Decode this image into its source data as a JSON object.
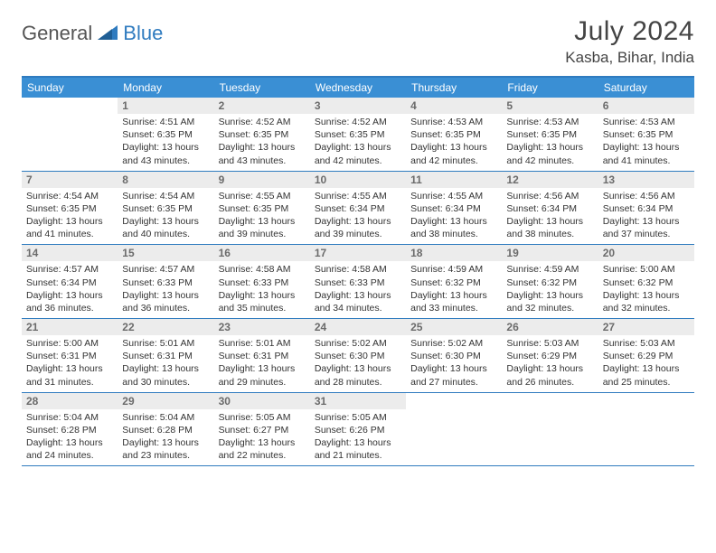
{
  "logo": {
    "general": "General",
    "blue": "Blue",
    "shape_color": "#2f7bbf"
  },
  "header": {
    "title": "July 2024",
    "location": "Kasba, Bihar, India"
  },
  "colors": {
    "header_bar": "#3a8fd4",
    "border": "#2f7bbf",
    "daynum_bg": "#ececec",
    "daynum_fg": "#6b6b6b",
    "text": "#333333",
    "bg": "#ffffff"
  },
  "days_of_week": [
    "Sunday",
    "Monday",
    "Tuesday",
    "Wednesday",
    "Thursday",
    "Friday",
    "Saturday"
  ],
  "weeks": [
    [
      null,
      {
        "n": "1",
        "sr": "Sunrise: 4:51 AM",
        "ss": "Sunset: 6:35 PM",
        "d1": "Daylight: 13 hours",
        "d2": "and 43 minutes."
      },
      {
        "n": "2",
        "sr": "Sunrise: 4:52 AM",
        "ss": "Sunset: 6:35 PM",
        "d1": "Daylight: 13 hours",
        "d2": "and 43 minutes."
      },
      {
        "n": "3",
        "sr": "Sunrise: 4:52 AM",
        "ss": "Sunset: 6:35 PM",
        "d1": "Daylight: 13 hours",
        "d2": "and 42 minutes."
      },
      {
        "n": "4",
        "sr": "Sunrise: 4:53 AM",
        "ss": "Sunset: 6:35 PM",
        "d1": "Daylight: 13 hours",
        "d2": "and 42 minutes."
      },
      {
        "n": "5",
        "sr": "Sunrise: 4:53 AM",
        "ss": "Sunset: 6:35 PM",
        "d1": "Daylight: 13 hours",
        "d2": "and 42 minutes."
      },
      {
        "n": "6",
        "sr": "Sunrise: 4:53 AM",
        "ss": "Sunset: 6:35 PM",
        "d1": "Daylight: 13 hours",
        "d2": "and 41 minutes."
      }
    ],
    [
      {
        "n": "7",
        "sr": "Sunrise: 4:54 AM",
        "ss": "Sunset: 6:35 PM",
        "d1": "Daylight: 13 hours",
        "d2": "and 41 minutes."
      },
      {
        "n": "8",
        "sr": "Sunrise: 4:54 AM",
        "ss": "Sunset: 6:35 PM",
        "d1": "Daylight: 13 hours",
        "d2": "and 40 minutes."
      },
      {
        "n": "9",
        "sr": "Sunrise: 4:55 AM",
        "ss": "Sunset: 6:35 PM",
        "d1": "Daylight: 13 hours",
        "d2": "and 39 minutes."
      },
      {
        "n": "10",
        "sr": "Sunrise: 4:55 AM",
        "ss": "Sunset: 6:34 PM",
        "d1": "Daylight: 13 hours",
        "d2": "and 39 minutes."
      },
      {
        "n": "11",
        "sr": "Sunrise: 4:55 AM",
        "ss": "Sunset: 6:34 PM",
        "d1": "Daylight: 13 hours",
        "d2": "and 38 minutes."
      },
      {
        "n": "12",
        "sr": "Sunrise: 4:56 AM",
        "ss": "Sunset: 6:34 PM",
        "d1": "Daylight: 13 hours",
        "d2": "and 38 minutes."
      },
      {
        "n": "13",
        "sr": "Sunrise: 4:56 AM",
        "ss": "Sunset: 6:34 PM",
        "d1": "Daylight: 13 hours",
        "d2": "and 37 minutes."
      }
    ],
    [
      {
        "n": "14",
        "sr": "Sunrise: 4:57 AM",
        "ss": "Sunset: 6:34 PM",
        "d1": "Daylight: 13 hours",
        "d2": "and 36 minutes."
      },
      {
        "n": "15",
        "sr": "Sunrise: 4:57 AM",
        "ss": "Sunset: 6:33 PM",
        "d1": "Daylight: 13 hours",
        "d2": "and 36 minutes."
      },
      {
        "n": "16",
        "sr": "Sunrise: 4:58 AM",
        "ss": "Sunset: 6:33 PM",
        "d1": "Daylight: 13 hours",
        "d2": "and 35 minutes."
      },
      {
        "n": "17",
        "sr": "Sunrise: 4:58 AM",
        "ss": "Sunset: 6:33 PM",
        "d1": "Daylight: 13 hours",
        "d2": "and 34 minutes."
      },
      {
        "n": "18",
        "sr": "Sunrise: 4:59 AM",
        "ss": "Sunset: 6:32 PM",
        "d1": "Daylight: 13 hours",
        "d2": "and 33 minutes."
      },
      {
        "n": "19",
        "sr": "Sunrise: 4:59 AM",
        "ss": "Sunset: 6:32 PM",
        "d1": "Daylight: 13 hours",
        "d2": "and 32 minutes."
      },
      {
        "n": "20",
        "sr": "Sunrise: 5:00 AM",
        "ss": "Sunset: 6:32 PM",
        "d1": "Daylight: 13 hours",
        "d2": "and 32 minutes."
      }
    ],
    [
      {
        "n": "21",
        "sr": "Sunrise: 5:00 AM",
        "ss": "Sunset: 6:31 PM",
        "d1": "Daylight: 13 hours",
        "d2": "and 31 minutes."
      },
      {
        "n": "22",
        "sr": "Sunrise: 5:01 AM",
        "ss": "Sunset: 6:31 PM",
        "d1": "Daylight: 13 hours",
        "d2": "and 30 minutes."
      },
      {
        "n": "23",
        "sr": "Sunrise: 5:01 AM",
        "ss": "Sunset: 6:31 PM",
        "d1": "Daylight: 13 hours",
        "d2": "and 29 minutes."
      },
      {
        "n": "24",
        "sr": "Sunrise: 5:02 AM",
        "ss": "Sunset: 6:30 PM",
        "d1": "Daylight: 13 hours",
        "d2": "and 28 minutes."
      },
      {
        "n": "25",
        "sr": "Sunrise: 5:02 AM",
        "ss": "Sunset: 6:30 PM",
        "d1": "Daylight: 13 hours",
        "d2": "and 27 minutes."
      },
      {
        "n": "26",
        "sr": "Sunrise: 5:03 AM",
        "ss": "Sunset: 6:29 PM",
        "d1": "Daylight: 13 hours",
        "d2": "and 26 minutes."
      },
      {
        "n": "27",
        "sr": "Sunrise: 5:03 AM",
        "ss": "Sunset: 6:29 PM",
        "d1": "Daylight: 13 hours",
        "d2": "and 25 minutes."
      }
    ],
    [
      {
        "n": "28",
        "sr": "Sunrise: 5:04 AM",
        "ss": "Sunset: 6:28 PM",
        "d1": "Daylight: 13 hours",
        "d2": "and 24 minutes."
      },
      {
        "n": "29",
        "sr": "Sunrise: 5:04 AM",
        "ss": "Sunset: 6:28 PM",
        "d1": "Daylight: 13 hours",
        "d2": "and 23 minutes."
      },
      {
        "n": "30",
        "sr": "Sunrise: 5:05 AM",
        "ss": "Sunset: 6:27 PM",
        "d1": "Daylight: 13 hours",
        "d2": "and 22 minutes."
      },
      {
        "n": "31",
        "sr": "Sunrise: 5:05 AM",
        "ss": "Sunset: 6:26 PM",
        "d1": "Daylight: 13 hours",
        "d2": "and 21 minutes."
      },
      null,
      null,
      null
    ]
  ]
}
